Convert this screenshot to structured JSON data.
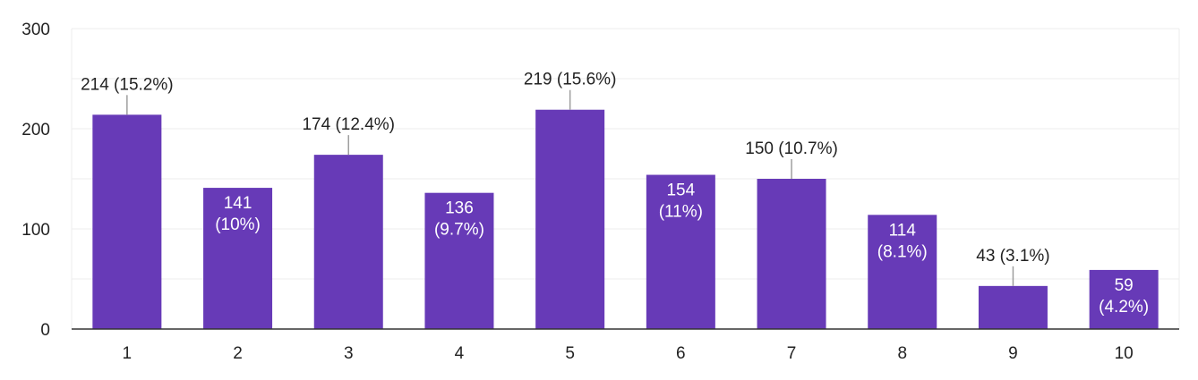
{
  "chart_data": {
    "type": "bar",
    "categories": [
      "1",
      "2",
      "3",
      "4",
      "5",
      "6",
      "7",
      "8",
      "9",
      "10"
    ],
    "values": [
      214,
      141,
      174,
      136,
      219,
      154,
      150,
      114,
      43,
      59
    ],
    "data_labels": [
      "214 (15.2%)",
      "141 (10%)",
      "174 (12.4%)",
      "136 (9.7%)",
      "219 (15.6%)",
      "154 (11%)",
      "150 (10.7%)",
      "114 (8.1%)",
      "43 (3.1%)",
      "59 (4.2%)"
    ],
    "label_inside": [
      false,
      true,
      false,
      true,
      false,
      true,
      false,
      true,
      false,
      true
    ],
    "yticks": [
      0,
      100,
      200,
      300
    ],
    "ylim": [
      0,
      300
    ],
    "grid": true,
    "bar_color": "#673ab7"
  }
}
